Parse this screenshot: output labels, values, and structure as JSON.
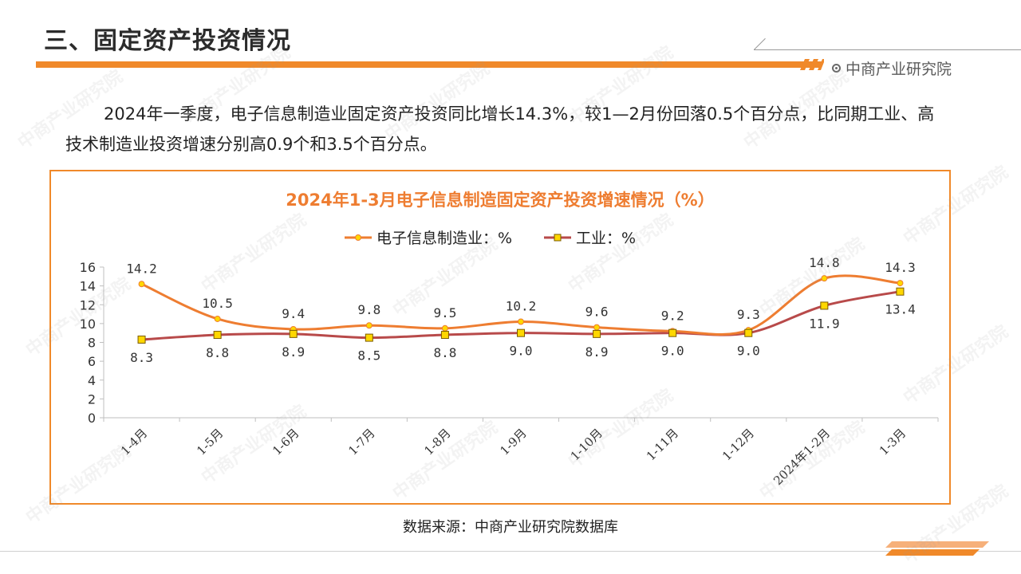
{
  "page": {
    "section_title": "三、固定资产投资情况",
    "brand": "中商产业研究院",
    "paragraph": "2024年一季度，电子信息制造业固定资产投资同比增长14.3%，较1—2月份回落0.5个百分点，比同期工业、高技术制造业投资增速分别高0.9个和3.5个百分点。",
    "source": "数据来源：中商产业研究院数据库",
    "watermark_text": "中商产业研究院",
    "colors": {
      "accent": "#f0892a",
      "series1": "#ee7d31",
      "series2": "#b84a4a",
      "marker1": "#ffd700",
      "marker2": "#ffd700"
    }
  },
  "chart_data": {
    "type": "line",
    "title": "2024年1-3月电子信息制造固定资产投资增速情况（%）",
    "categories": [
      "1-4月",
      "1-5月",
      "1-6月",
      "1-7月",
      "1-8月",
      "1-9月",
      "1-10月",
      "1-11月",
      "1-12月",
      "2024年1-2月",
      "1-3月"
    ],
    "series": [
      {
        "name": "电子信息制造业：%",
        "values": [
          14.2,
          10.5,
          9.4,
          9.8,
          9.5,
          10.2,
          9.6,
          9.2,
          9.3,
          14.8,
          14.3
        ],
        "labels": [
          "14.2",
          "10.5",
          "9.4",
          "9.8",
          "9.5",
          "10.2",
          "9.6",
          "9.2",
          "9.3",
          "14.8",
          "14.3"
        ],
        "color": "#ee7d31",
        "marker": "circle"
      },
      {
        "name": "工业：%",
        "values": [
          8.3,
          8.8,
          8.9,
          8.5,
          8.8,
          9.0,
          8.9,
          9.0,
          9.0,
          11.9,
          13.4
        ],
        "labels": [
          "8.3",
          "8.8",
          "8.9",
          "8.5",
          "8.8",
          "9.0",
          "8.9",
          "9.0",
          "9.0",
          "11.9",
          "13.4"
        ],
        "color": "#b84a4a",
        "marker": "square"
      }
    ],
    "ylim": [
      0,
      16
    ],
    "yticks": [
      "0",
      "2",
      "4",
      "6",
      "8",
      "10",
      "12",
      "14",
      "16"
    ],
    "legend_position": "top-center",
    "grid": false
  }
}
